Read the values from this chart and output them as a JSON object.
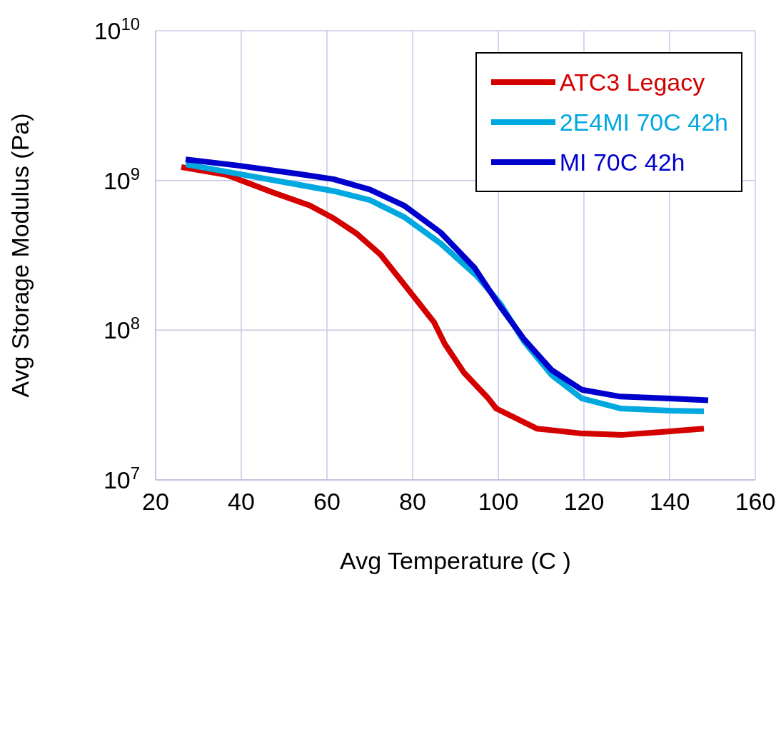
{
  "chart_data": {
    "type": "line",
    "xlabel": "Avg Temperature (C )",
    "ylabel": "Avg Storage Modulus (Pa)",
    "xlim": [
      20,
      160
    ],
    "xticks": [
      20,
      40,
      60,
      80,
      100,
      120,
      140,
      160
    ],
    "ylim": [
      10000000,
      10000000000
    ],
    "yticks": [
      {
        "value": 10000000,
        "label": "10$^{7}$"
      },
      {
        "value": 100000000,
        "label": "10$^{8}$"
      },
      {
        "value": 1000000000,
        "label": "10$^{9}$"
      },
      {
        "value": 10000000000,
        "label": "10$^{10}$"
      }
    ],
    "log": "y",
    "grid": true,
    "legend": "top right",
    "marker": "none",
    "line_style": "solid",
    "series": [
      {
        "name": "ATC3 Legacy",
        "color": "#d40000",
        "x": [
          26,
          36.5,
          40,
          47.5,
          56,
          61.5,
          67,
          72.5,
          77,
          81,
          85,
          87.5,
          92,
          97.5,
          99.5,
          109,
          119,
          129,
          139,
          148
        ],
        "values": [
          1230000000,
          1090000000,
          1000000000,
          830000000,
          680000000,
          560000000,
          440000000,
          320000000,
          220000000,
          158000000,
          113000000,
          81000000,
          52000000,
          35500000,
          30000000,
          22000000,
          20500000,
          20000000,
          21000000,
          22000000
        ]
      },
      {
        "name": "2E4MI 70C 42h",
        "color": "#00a8e0",
        "x": [
          27,
          39,
          53,
          61.5,
          70,
          78,
          86.5,
          95,
          100.5,
          106,
          112.5,
          119.5,
          128.5,
          140,
          148
        ],
        "values": [
          1280000000,
          1110000000,
          940000000,
          850000000,
          740000000,
          570000000,
          380000000,
          230000000,
          150000000,
          84000000,
          50000000,
          35000000,
          30000000,
          29000000,
          28700000
        ]
      },
      {
        "name": "MI 70C 42h",
        "color": "#0000cc",
        "x": [
          27,
          39,
          53,
          61.5,
          70,
          78,
          86.5,
          94.5,
          100,
          106,
          112.5,
          119.5,
          128.5,
          140,
          149
        ],
        "values": [
          1380000000,
          1260000000,
          1110000000,
          1020000000,
          870000000,
          680000000,
          450000000,
          260000000,
          150000000,
          87000000,
          54000000,
          40000000,
          36000000,
          35000000,
          34000000
        ]
      }
    ]
  }
}
